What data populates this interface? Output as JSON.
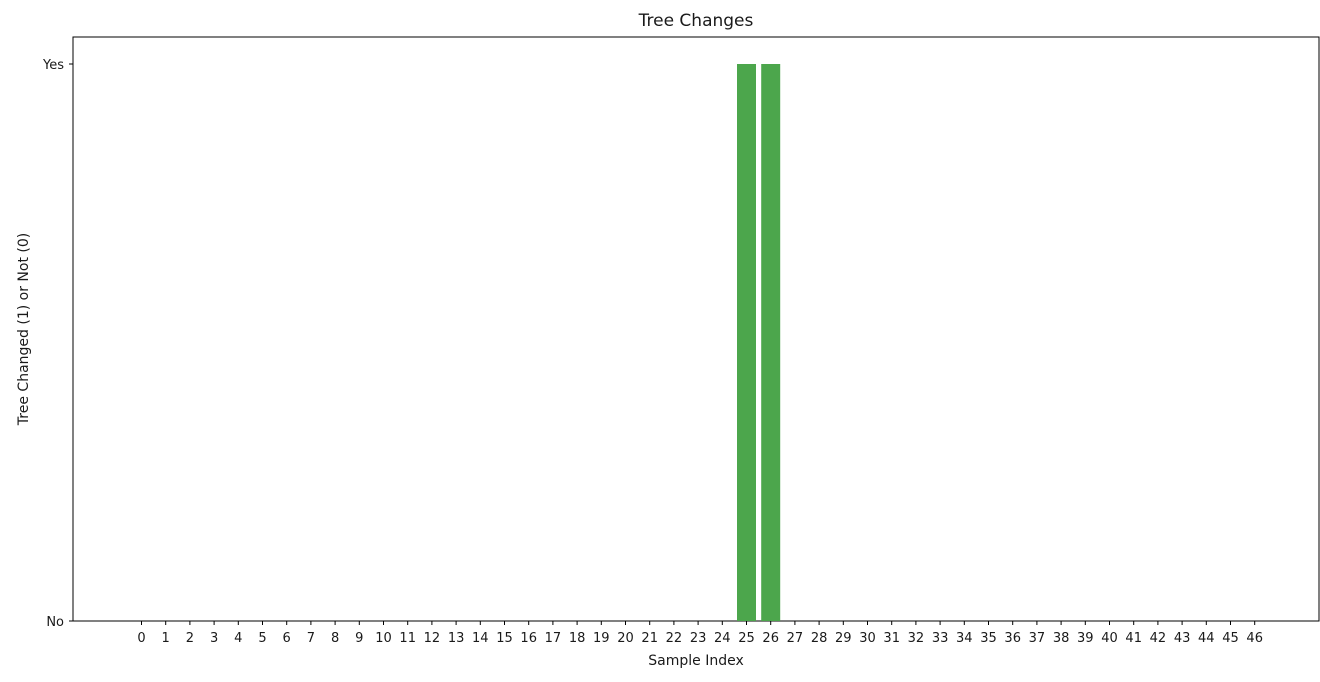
{
  "chart_data": {
    "type": "bar",
    "title": "Tree Changes",
    "xlabel": "Sample Index",
    "ylabel": "Tree Changed (1) or Not (0)",
    "categories": [
      "0",
      "1",
      "2",
      "3",
      "4",
      "5",
      "6",
      "7",
      "8",
      "9",
      "10",
      "11",
      "12",
      "13",
      "14",
      "15",
      "16",
      "17",
      "18",
      "19",
      "20",
      "21",
      "22",
      "23",
      "24",
      "25",
      "26",
      "27",
      "28",
      "29",
      "30",
      "31",
      "32",
      "33",
      "34",
      "35",
      "36",
      "37",
      "38",
      "39",
      "40",
      "41",
      "42",
      "43",
      "44",
      "45",
      "46"
    ],
    "values": [
      0,
      0,
      0,
      0,
      0,
      0,
      0,
      0,
      0,
      0,
      0,
      0,
      0,
      0,
      0,
      0,
      0,
      0,
      0,
      0,
      0,
      0,
      0,
      0,
      0,
      1,
      1,
      0,
      0,
      0,
      0,
      0,
      0,
      0,
      0,
      0,
      0,
      0,
      0,
      0,
      0,
      0,
      0,
      0,
      0,
      0,
      0
    ],
    "ylim": [
      0,
      1
    ],
    "yticks": [
      {
        "value": 0,
        "label": "No"
      },
      {
        "value": 1,
        "label": "Yes"
      }
    ],
    "bar_color": "#4ca64c",
    "grid": false,
    "legend": "none"
  }
}
